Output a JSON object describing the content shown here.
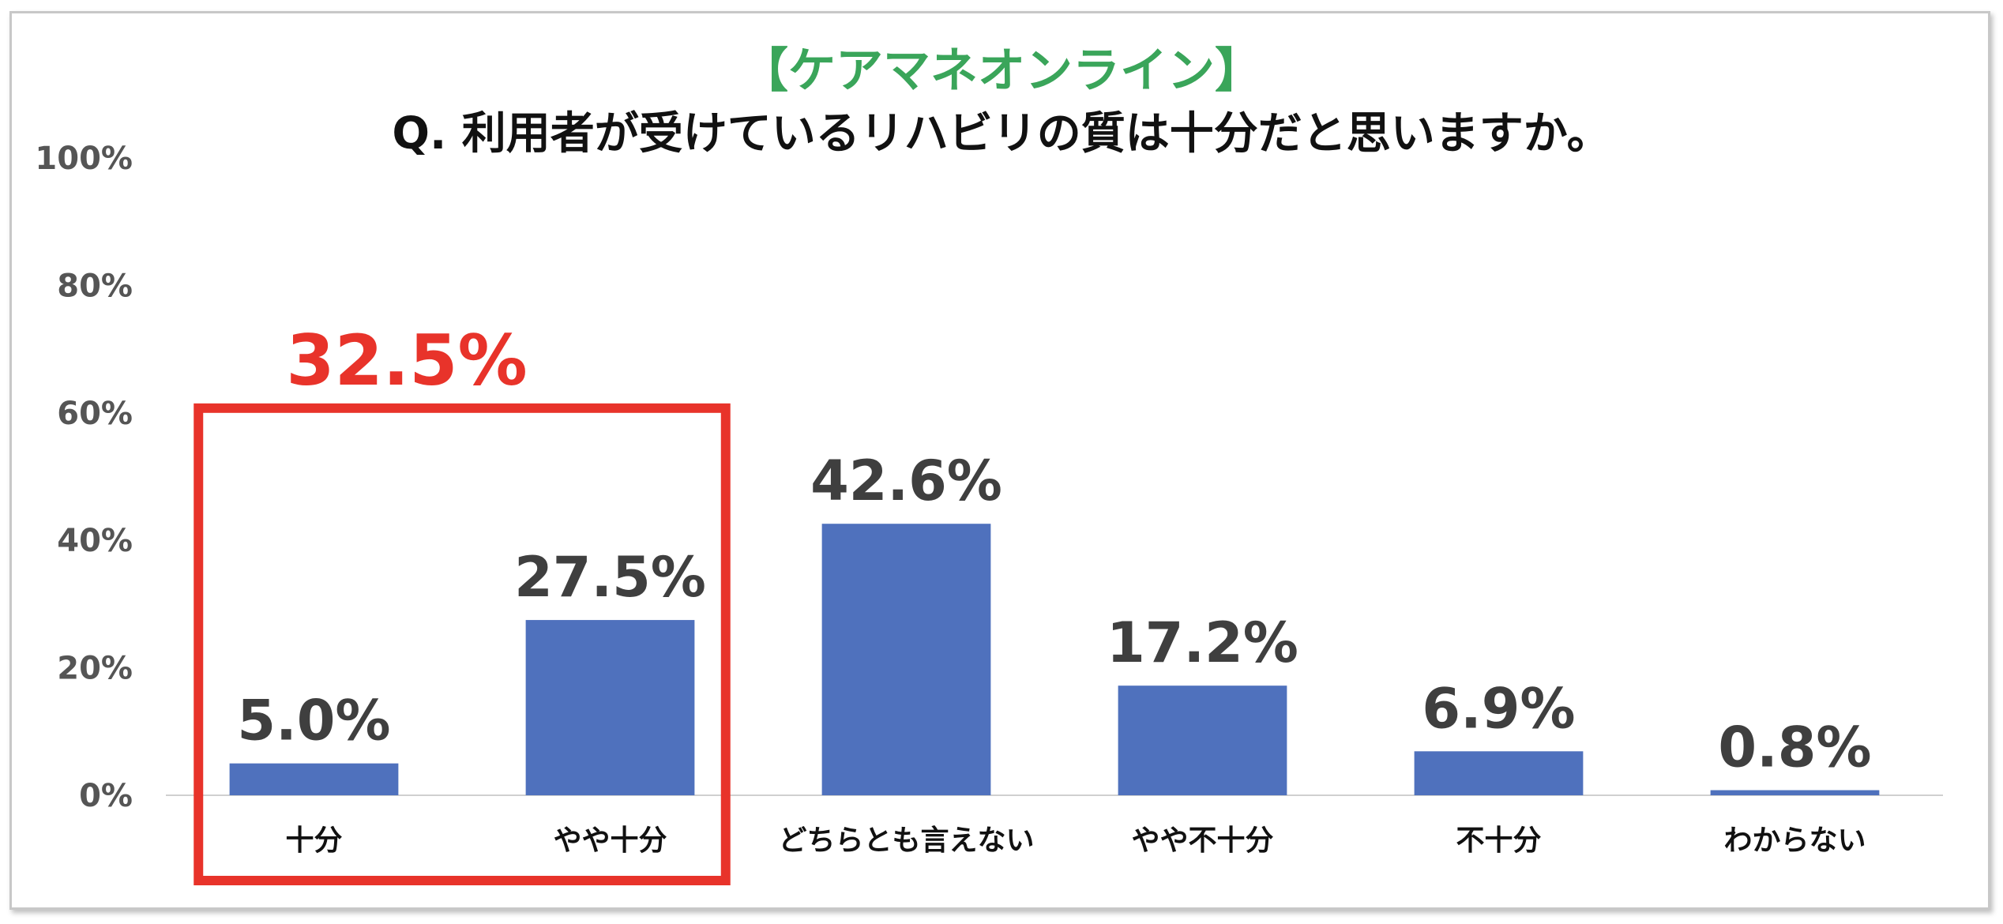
{
  "chart_data": {
    "type": "bar",
    "subtitle": "【ケアマネオンライン】",
    "title": "Q. 利用者が受けているリハビリの質は十分だと思いますか。",
    "categories": [
      "十分",
      "やや十分",
      "どちらとも言えない",
      "やや不十分",
      "不十分",
      "わからない"
    ],
    "values": [
      5.0,
      27.5,
      42.6,
      17.2,
      6.9,
      0.8
    ],
    "data_labels": [
      "5.0%",
      "27.5%",
      "42.6%",
      "17.2%",
      "6.9%",
      "0.8%"
    ],
    "y_ticks": [
      "0%",
      "20%",
      "40%",
      "60%",
      "80%",
      "100%"
    ],
    "ylim": [
      0,
      100
    ],
    "grid": false,
    "bar_color": "#4f71bd",
    "highlight": {
      "label": "32.5%",
      "categories": [
        "十分",
        "やや十分"
      ],
      "color": "#e8332a"
    }
  }
}
